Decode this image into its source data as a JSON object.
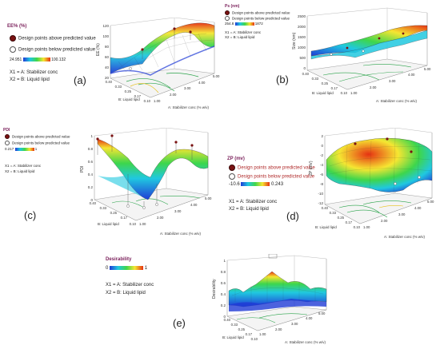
{
  "panels": {
    "a": {
      "label": "(a)",
      "response_title": "EE% (%)",
      "above": "Design points above predicted value",
      "below": "Design points below predicted value",
      "range_min": "24.951",
      "range_max": "100.132",
      "x1": "X1 = A: Stabilizer conc",
      "x2": "X2 = B: Liquid lipid",
      "z_axis": "EE (%)",
      "x_axis": "A: Stabilizer conc (% w/v)",
      "y_axis": "B: Liquid lipid"
    },
    "b": {
      "label": "(b)",
      "response_title": "Ps (nm)",
      "above": "Design points above predicted value",
      "below": "Design points below predicted value",
      "range_min": "254.8",
      "range_max": "1872",
      "x1": "X1 = A: Stabilizer conc",
      "x2": "X2 = B: Liquid lipid",
      "z_axis": "Size (nm)",
      "x_axis": "A: Stabilizer conc (% w/v)",
      "y_axis": "B: Liquid lipid"
    },
    "c": {
      "label": "(c)",
      "response_title": "PDI",
      "above": "Design points above predicted value",
      "below": "Design points below predicted value",
      "range_min": "0.217",
      "range_max": "1",
      "x1": "X1 = A: Stabilizer conc",
      "x2": "X2 = B: Liquid lipid",
      "z_axis": "PDI",
      "x_axis": "A: Stabilizer conc (% w/v)",
      "y_axis": "B: Liquid lipid"
    },
    "d": {
      "label": "(d)",
      "response_title": "ZP (mv)",
      "above": "Design points above predicted value",
      "below": "Design points below predicted value",
      "range_min": "-10.6",
      "range_max": "0.243",
      "x1": "X1 = A: Stabilizer conc",
      "x2": "X2 = B: Liquid lipid",
      "z_axis": "ZP (mV)",
      "x_axis": "A: Stabilizer conc (% w/v)",
      "y_axis": "B: Liquid lipid"
    },
    "e": {
      "label": "(e)",
      "response_title": "Desirability",
      "range_min": "0",
      "range_max": "1",
      "x1": "X1 = A: Stabilizer conc",
      "x2": "X2 = B: Liquid lipid",
      "z_axis": "Desirability",
      "x_axis": "A: Stabilizer conc (% w/v)",
      "y_axis": "B: Liquid lipid"
    }
  },
  "ticks": {
    "a_z": [
      "120",
      "100",
      "80",
      "60",
      "40",
      "20"
    ],
    "a_x": [
      "1.00",
      "2.00",
      "3.00",
      "4.00",
      "5.00"
    ],
    "a_y": [
      "0.10",
      "0.17",
      "0.25",
      "0.33",
      "0.40"
    ],
    "b_z": [
      "2500",
      "2000",
      "1500",
      "1000",
      "500",
      "0"
    ],
    "b_x": [
      "1.00",
      "2.00",
      "3.00",
      "4.00",
      "5.00"
    ],
    "b_y": [
      "0.10",
      "0.17",
      "0.25",
      "0.33",
      "0.40"
    ],
    "c_z": [
      "1",
      "0.8",
      "0.6",
      "0.4",
      "0.2",
      "0"
    ],
    "c_x": [
      "1.00",
      "2.00",
      "3.00",
      "4.00",
      "5.00"
    ],
    "c_y": [
      "0.10",
      "0.17",
      "0.25",
      "0.33",
      "0.40"
    ],
    "d_z": [
      "2",
      "0",
      "-2",
      "-4",
      "-6",
      "-8",
      "-10",
      "-12"
    ],
    "d_x": [
      "1.00",
      "2.00",
      "3.00",
      "4.00",
      "5.00"
    ],
    "d_y": [
      "0.10",
      "0.17",
      "0.25",
      "0.33",
      "0.40"
    ],
    "e_z": [
      "1",
      "0.8",
      "0.6",
      "0.4",
      "0.2",
      "0"
    ],
    "e_x": [
      "1.00",
      "2.00",
      "3.00",
      "4.00",
      "5.00"
    ],
    "e_y": [
      "0.10",
      "0.17",
      "0.25",
      "0.33",
      "0.40"
    ]
  },
  "colors": {
    "low": "#1f3bd6",
    "mid_low": "#20c8e0",
    "mid": "#3ed64c",
    "mid_high": "#f5e632",
    "high": "#e63212",
    "point_above": "#7a1212",
    "legend_title": "#7a1f5a"
  }
}
